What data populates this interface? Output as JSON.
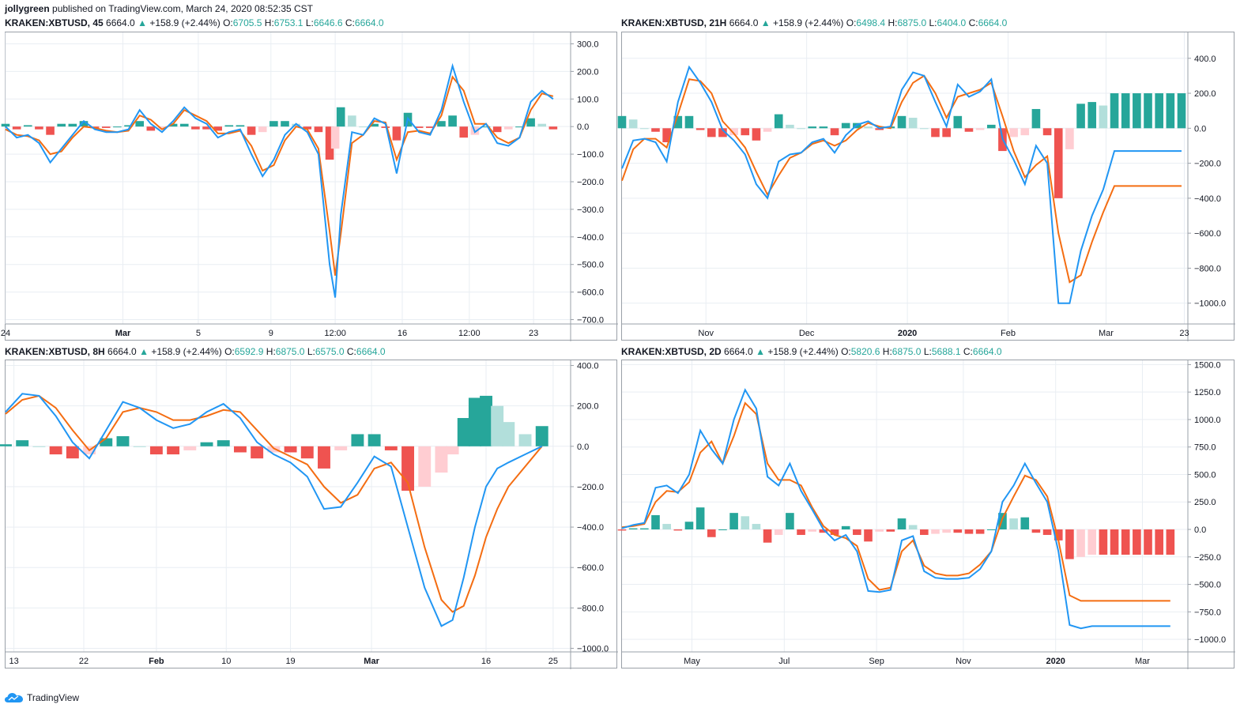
{
  "header": {
    "author": "jollygreen",
    "published": "published on TradingView.com, March 24, 2020 08:52:35 CST"
  },
  "footer": {
    "brand": "TradingView"
  },
  "colors": {
    "macd": "#2196f3",
    "signal": "#f46d12",
    "hist_pos_strong": "#26a69a",
    "hist_pos_weak": "#b2dfdb",
    "hist_neg_strong": "#ef5350",
    "hist_neg_weak": "#ffcdd2",
    "grid": "#e9eef3"
  },
  "charts": [
    {
      "symbol": "KRAKEN:XBTUSD, 45",
      "last": "6664.0",
      "arrow": "▲",
      "change": "+158.9 (+2.44%)",
      "o": "6705.5",
      "h": "6753.1",
      "l": "6646.6",
      "c": "6664.0"
    },
    {
      "symbol": "KRAKEN:XBTUSD, 21H",
      "last": "6664.0",
      "arrow": "▲",
      "change": "+158.9 (+2.44%)",
      "o": "6498.4",
      "h": "6875.0",
      "l": "6404.0",
      "c": "6664.0"
    },
    {
      "symbol": "KRAKEN:XBTUSD, 8H",
      "last": "6664.0",
      "arrow": "▲",
      "change": "+158.9 (+2.44%)",
      "o": "6592.9",
      "h": "6875.0",
      "l": "6575.0",
      "c": "6664.0"
    },
    {
      "symbol": "KRAKEN:XBTUSD, 2D",
      "last": "6664.0",
      "arrow": "▲",
      "change": "+158.9 (+2.44%)",
      "o": "5820.6",
      "h": "6875.0",
      "l": "5688.1",
      "c": "6664.0"
    }
  ],
  "chart_data": [
    {
      "type": "line",
      "title": "KRAKEN:XBTUSD, 45",
      "ylim": [
        -710,
        330
      ],
      "yticks": [
        300,
        200,
        100,
        0,
        -100,
        -200,
        -300,
        -400,
        -500,
        -600,
        -700
      ],
      "yticklabels": [
        "300.0",
        "200.0",
        "100.0",
        "0.0",
        "−100.0",
        "−200.0",
        "−300.0",
        "−400.0",
        "−500.0",
        "−600.0",
        "−700.0"
      ],
      "xticks": [
        {
          "t": 0,
          "label": "24",
          "bold": false
        },
        {
          "t": 21,
          "label": "Mar",
          "bold": true
        },
        {
          "t": 34.5,
          "label": "5",
          "bold": false
        },
        {
          "t": 47.5,
          "label": "9",
          "bold": false
        },
        {
          "t": 59,
          "label": "12:00",
          "bold": false
        },
        {
          "t": 71,
          "label": "16",
          "bold": false
        },
        {
          "t": 83,
          "label": "12:00",
          "bold": false
        },
        {
          "t": 94.5,
          "label": "23",
          "bold": false
        }
      ],
      "x": [
        0,
        2,
        4,
        6,
        8,
        10,
        12,
        14,
        16,
        18,
        20,
        22,
        24,
        26,
        28,
        30,
        32,
        34,
        36,
        38,
        40,
        42,
        44,
        46,
        48,
        50,
        52,
        54,
        56,
        58,
        59,
        60,
        62,
        64,
        66,
        68,
        70,
        72,
        74,
        76,
        78,
        80,
        82,
        84,
        86,
        88,
        90,
        92,
        94,
        96,
        98
      ],
      "series": [
        {
          "name": "MACD",
          "values": [
            0,
            -40,
            -30,
            -60,
            -130,
            -80,
            -30,
            20,
            -10,
            -20,
            -20,
            -10,
            60,
            10,
            -20,
            20,
            70,
            30,
            10,
            -40,
            -20,
            -10,
            -100,
            -180,
            -120,
            -30,
            10,
            -20,
            -100,
            -500,
            -620,
            -320,
            -20,
            -30,
            30,
            10,
            -170,
            30,
            -20,
            -30,
            60,
            220,
            90,
            -20,
            10,
            -60,
            -70,
            -40,
            90,
            130,
            100
          ]
        },
        {
          "name": "Signal",
          "values": [
            -10,
            -30,
            -35,
            -50,
            -100,
            -90,
            -40,
            0,
            -5,
            -15,
            -20,
            -15,
            40,
            25,
            -10,
            10,
            60,
            40,
            20,
            -25,
            -25,
            -15,
            -70,
            -160,
            -140,
            -50,
            0,
            -10,
            -80,
            -380,
            -540,
            -390,
            -60,
            -30,
            20,
            15,
            -120,
            -20,
            -15,
            -25,
            40,
            180,
            130,
            10,
            10,
            -40,
            -60,
            -40,
            60,
            120,
            110
          ]
        },
        {
          "name": "Histogram",
          "values": [
            10,
            -10,
            5,
            -10,
            -30,
            10,
            10,
            20,
            -5,
            -5,
            0,
            5,
            20,
            -15,
            -10,
            10,
            10,
            -10,
            -10,
            -15,
            5,
            5,
            -30,
            -20,
            20,
            20,
            10,
            -10,
            -20,
            -120,
            -80,
            70,
            40,
            0,
            10,
            -5,
            -50,
            50,
            -5,
            -5,
            20,
            40,
            -40,
            -30,
            0,
            -20,
            -10,
            0,
            30,
            10,
            -10
          ]
        }
      ]
    },
    {
      "type": "line",
      "title": "KRAKEN:XBTUSD, 21H",
      "ylim": [
        -1110,
        530
      ],
      "yticks": [
        400,
        200,
        0,
        -200,
        -400,
        -600,
        -800,
        -1000
      ],
      "yticklabels": [
        "400.0",
        "200.0",
        "0.0",
        "−200.0",
        "−400.0",
        "−600.0",
        "−800.0",
        "−1000.0"
      ],
      "xticks": [
        {
          "t": 15,
          "label": "Nov",
          "bold": false
        },
        {
          "t": 33,
          "label": "Dec",
          "bold": false
        },
        {
          "t": 51,
          "label": "2020",
          "bold": true
        },
        {
          "t": 69,
          "label": "Feb",
          "bold": false
        },
        {
          "t": 86.5,
          "label": "Mar",
          "bold": false
        },
        {
          "t": 100.5,
          "label": "23",
          "bold": false
        }
      ],
      "x": [
        0,
        2,
        4,
        6,
        8,
        10,
        12,
        14,
        16,
        18,
        20,
        22,
        24,
        26,
        28,
        30,
        32,
        34,
        36,
        38,
        40,
        42,
        44,
        46,
        48,
        50,
        52,
        54,
        56,
        58,
        60,
        62,
        64,
        66,
        68,
        70,
        72,
        74,
        76,
        78,
        80,
        82,
        84,
        86,
        88,
        90,
        92,
        94,
        96,
        98,
        100
      ],
      "series": [
        {
          "name": "MACD",
          "values": [
            -230,
            -70,
            -60,
            -80,
            -190,
            150,
            350,
            260,
            150,
            -10,
            -70,
            -150,
            -320,
            -400,
            -190,
            -150,
            -140,
            -80,
            -60,
            -140,
            -40,
            20,
            40,
            0,
            10,
            220,
            320,
            300,
            150,
            10,
            250,
            180,
            210,
            280,
            -60,
            -180,
            -320,
            -100,
            -200,
            -1000,
            -1000,
            -700,
            -500,
            -350,
            -130,
            -130,
            -130,
            -130,
            -130,
            -130,
            -130
          ]
        },
        {
          "name": "Signal",
          "values": [
            -300,
            -120,
            -60,
            -60,
            -110,
            80,
            280,
            270,
            200,
            40,
            -30,
            -110,
            -250,
            -380,
            -270,
            -170,
            -140,
            -90,
            -70,
            -100,
            -70,
            -10,
            30,
            10,
            0,
            150,
            260,
            300,
            200,
            60,
            180,
            200,
            220,
            260,
            70,
            -130,
            -280,
            -210,
            -160,
            -600,
            -880,
            -840,
            -650,
            -480,
            -330,
            -330,
            -330,
            -330,
            -330,
            -330,
            -330
          ]
        },
        {
          "name": "Histogram",
          "values": [
            70,
            50,
            0,
            -20,
            -80,
            70,
            70,
            -10,
            -50,
            -50,
            -40,
            -40,
            -70,
            -20,
            80,
            20,
            0,
            10,
            10,
            -40,
            30,
            30,
            10,
            -10,
            10,
            70,
            60,
            0,
            -50,
            -50,
            70,
            -20,
            -10,
            20,
            -130,
            -50,
            -40,
            110,
            -40,
            -400,
            -120,
            140,
            150,
            130,
            200,
            200,
            200,
            200,
            200,
            200,
            200
          ]
        }
      ]
    },
    {
      "type": "line",
      "title": "KRAKEN:XBTUSD, 8H",
      "ylim": [
        -1010,
        410
      ],
      "yticks": [
        400,
        200,
        0,
        -200,
        -400,
        -600,
        -800,
        -1000
      ],
      "yticklabels": [
        "400.0",
        "200.0",
        "0.0",
        "−200.0",
        "−400.0",
        "−600.0",
        "−800.0",
        "−1000.0"
      ],
      "xticks": [
        {
          "t": 1.5,
          "label": "13",
          "bold": false
        },
        {
          "t": 14,
          "label": "22",
          "bold": false
        },
        {
          "t": 27,
          "label": "Feb",
          "bold": true
        },
        {
          "t": 39.5,
          "label": "10",
          "bold": false
        },
        {
          "t": 51,
          "label": "19",
          "bold": false
        },
        {
          "t": 65.5,
          "label": "Mar",
          "bold": true
        },
        {
          "t": 86,
          "label": "16",
          "bold": false
        },
        {
          "t": 98,
          "label": "25",
          "bold": false
        }
      ],
      "x": [
        0,
        3,
        6,
        9,
        12,
        15,
        18,
        21,
        24,
        27,
        30,
        33,
        36,
        39,
        42,
        45,
        48,
        51,
        54,
        57,
        60,
        63,
        66,
        69,
        72,
        75,
        78,
        80,
        82,
        84,
        86,
        88,
        90,
        93,
        96
      ],
      "series": [
        {
          "name": "MACD",
          "values": [
            170,
            260,
            250,
            150,
            20,
            -60,
            80,
            220,
            190,
            130,
            90,
            110,
            170,
            210,
            140,
            20,
            -40,
            -80,
            -150,
            -310,
            -300,
            -180,
            -50,
            -100,
            -400,
            -700,
            -890,
            -860,
            -650,
            -400,
            -200,
            -110,
            -80,
            -40,
            0
          ]
        },
        {
          "name": "Signal",
          "values": [
            160,
            230,
            250,
            190,
            80,
            -20,
            40,
            170,
            190,
            170,
            130,
            130,
            150,
            180,
            170,
            80,
            -10,
            -50,
            -90,
            -200,
            -280,
            -240,
            -110,
            -80,
            -180,
            -500,
            -760,
            -820,
            -790,
            -640,
            -450,
            -310,
            -200,
            -100,
            0
          ]
        },
        {
          "name": "Histogram",
          "values": [
            10,
            30,
            0,
            -40,
            -60,
            -40,
            40,
            50,
            0,
            -40,
            -40,
            -20,
            20,
            30,
            -30,
            -60,
            -30,
            -30,
            -60,
            -110,
            -20,
            60,
            60,
            -20,
            -220,
            -200,
            -130,
            -40,
            140,
            240,
            250,
            200,
            120,
            60,
            100
          ]
        }
      ]
    },
    {
      "type": "line",
      "title": "KRAKEN:XBTUSD, 2D",
      "ylim": [
        -1100,
        1510
      ],
      "yticks": [
        1500,
        1250,
        1000,
        750,
        500,
        250,
        0,
        -250,
        -500,
        -750,
        -1000
      ],
      "yticklabels": [
        "1500.0",
        "1250.0",
        "1000.0",
        "750.0",
        "500.0",
        "250.0",
        "0.0",
        "−250.0",
        "−500.0",
        "−750.0",
        "−1000.0"
      ],
      "xticks": [
        {
          "t": 12.5,
          "label": "May",
          "bold": false
        },
        {
          "t": 29,
          "label": "Jul",
          "bold": false
        },
        {
          "t": 45.5,
          "label": "Sep",
          "bold": false
        },
        {
          "t": 61,
          "label": "Nov",
          "bold": false
        },
        {
          "t": 77.5,
          "label": "2020",
          "bold": true
        },
        {
          "t": 93,
          "label": "Mar",
          "bold": false
        }
      ],
      "x": [
        0,
        2,
        4,
        6,
        8,
        10,
        12,
        14,
        16,
        18,
        20,
        22,
        24,
        26,
        28,
        30,
        32,
        34,
        36,
        38,
        40,
        42,
        44,
        46,
        48,
        50,
        52,
        54,
        56,
        58,
        60,
        62,
        64,
        66,
        68,
        70,
        72,
        74,
        76,
        78,
        80,
        82,
        84,
        86,
        88,
        90,
        92,
        94,
        96,
        98
      ],
      "series": [
        {
          "name": "MACD",
          "values": [
            10,
            40,
            60,
            380,
            400,
            330,
            500,
            900,
            730,
            600,
            1000,
            1270,
            1100,
            480,
            400,
            600,
            350,
            180,
            0,
            -100,
            -50,
            -200,
            -560,
            -570,
            -550,
            -100,
            -60,
            -380,
            -440,
            -450,
            -450,
            -440,
            -360,
            -200,
            250,
            400,
            600,
            420,
            250,
            -200,
            -870,
            -900,
            -880,
            -880,
            -880,
            -880,
            -880,
            -880,
            -880,
            -880
          ]
        },
        {
          "name": "Signal",
          "values": [
            20,
            30,
            50,
            250,
            350,
            340,
            430,
            700,
            800,
            600,
            850,
            1150,
            1050,
            600,
            450,
            450,
            400,
            200,
            30,
            -50,
            -80,
            -150,
            -450,
            -550,
            -530,
            -200,
            -100,
            -330,
            -400,
            -420,
            -420,
            -400,
            -320,
            -200,
            100,
            300,
            490,
            450,
            300,
            -100,
            -600,
            -650,
            -650,
            -650,
            -650,
            -650,
            -650,
            -650,
            -650,
            -650
          ]
        },
        {
          "name": "Histogram",
          "values": [
            -10,
            10,
            10,
            130,
            50,
            -10,
            70,
            200,
            -70,
            0,
            150,
            120,
            50,
            -120,
            -50,
            150,
            -50,
            -20,
            -30,
            -50,
            30,
            -50,
            -110,
            -20,
            -20,
            100,
            40,
            -50,
            -40,
            -30,
            -30,
            -40,
            -40,
            0,
            150,
            100,
            110,
            -30,
            -50,
            -100,
            -270,
            -250,
            -230,
            -230,
            -230,
            -230,
            -230,
            -230,
            -230,
            -230
          ]
        }
      ]
    }
  ]
}
